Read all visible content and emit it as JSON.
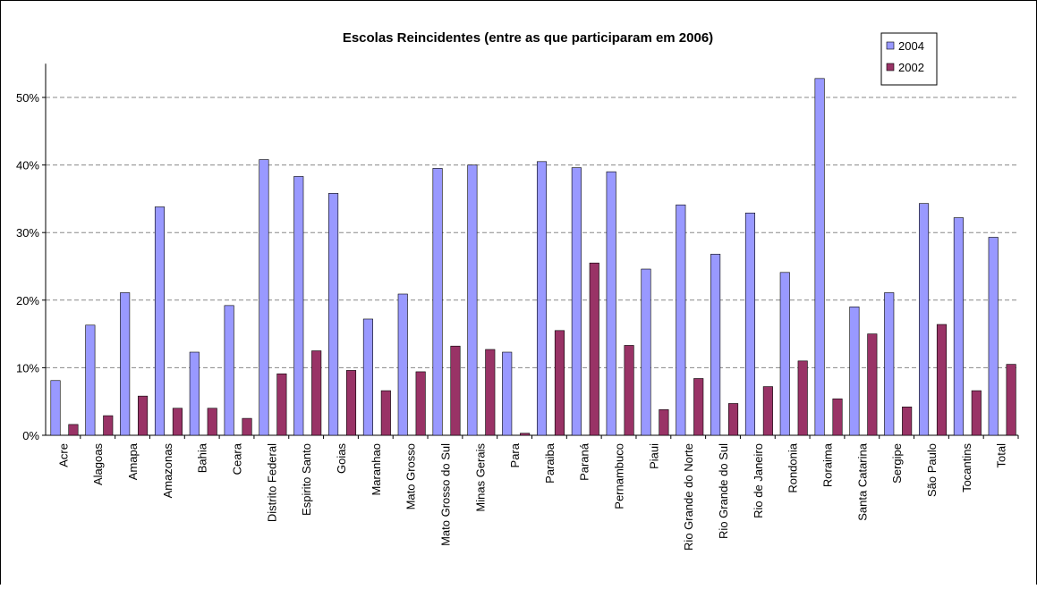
{
  "chart_data": {
    "type": "bar",
    "title": "Escolas Reincidentes (entre as que participaram em 2006)",
    "categories": [
      "Acre",
      "Alagoas",
      "Amapa",
      "Amazonas",
      "Bahia",
      "Ceara",
      "Distrito Federal",
      "Espirito Santo",
      "Goias",
      "Maranhao",
      "Mato Grosso",
      "Mato Grosso do Sul",
      "Minas Gerais",
      "Para",
      "Paraiba",
      "Paraná",
      "Pernambuco",
      "Piaui",
      "Rio Grande do Norte",
      "Rio Grande do Sul",
      "Rio de Janeiro",
      "Rondonia",
      "Roraima",
      "Santa Catarina",
      "Sergipe",
      "São Paulo",
      "Tocantins",
      "Total"
    ],
    "series": [
      {
        "name": "2004",
        "color": "#9999ff",
        "values": [
          8.1,
          16.3,
          21.1,
          33.8,
          12.3,
          19.2,
          40.8,
          38.3,
          35.8,
          17.2,
          20.9,
          39.5,
          40.0,
          12.3,
          40.5,
          39.6,
          39.0,
          24.6,
          34.1,
          26.8,
          32.9,
          24.1,
          52.8,
          19.0,
          21.1,
          34.3,
          32.2,
          29.3
        ]
      },
      {
        "name": "2002",
        "color": "#993366",
        "values": [
          1.6,
          2.9,
          5.8,
          4.0,
          4.0,
          2.5,
          9.1,
          12.5,
          9.6,
          6.6,
          9.4,
          13.2,
          12.7,
          0.3,
          15.5,
          25.5,
          13.3,
          3.8,
          8.4,
          4.7,
          7.2,
          11.0,
          5.4,
          15.0,
          4.2,
          16.4,
          6.6,
          10.5
        ]
      }
    ],
    "ylim": [
      0,
      55
    ],
    "yticks": [
      {
        "value": 0,
        "label": "0%"
      },
      {
        "value": 10,
        "label": "10%"
      },
      {
        "value": 20,
        "label": "20%"
      },
      {
        "value": 30,
        "label": "30%"
      },
      {
        "value": 40,
        "label": "40%"
      },
      {
        "value": 50,
        "label": "50%"
      }
    ],
    "grid": true,
    "legend": "top-right"
  }
}
